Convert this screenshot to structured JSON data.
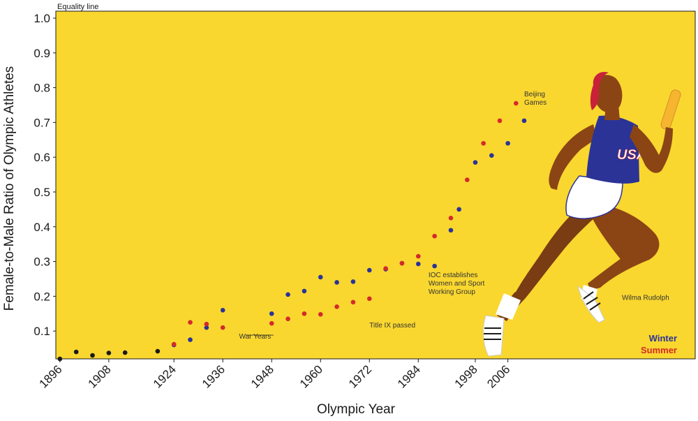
{
  "chart_data": {
    "type": "scatter",
    "title": "",
    "xlabel": "Olympic Year",
    "ylabel": "Female-to-Male Ratio of Olympic Athletes",
    "xlim": [
      1895,
      2052
    ],
    "ylim": [
      0.02,
      1.02
    ],
    "x_ticks": [
      "1896",
      "1908",
      "1924",
      "1936",
      "1948",
      "1960",
      "1972",
      "1984",
      "1998",
      "2006"
    ],
    "y_ticks": [
      "0.1",
      "0.2",
      "0.3",
      "0.4",
      "0.5",
      "0.6",
      "0.7",
      "0.8",
      "0.9",
      "1.0"
    ],
    "reference_line": {
      "label": "Equality line",
      "y": 1.0
    },
    "colors": {
      "background": "#f9d72f",
      "winter": "#2b3397",
      "summer": "#d42a2a",
      "early": "#1a1a1a"
    },
    "series": [
      {
        "name": "",
        "color": "#1a1a1a",
        "x": [
          1896,
          1900,
          1904,
          1908,
          1912,
          1920
        ],
        "y": [
          0.02,
          0.04,
          0.03,
          0.037,
          0.038,
          0.042
        ]
      },
      {
        "name": "Winter",
        "color": "#2b3397",
        "x": [
          1924,
          1928,
          1932,
          1936,
          1948,
          1952,
          1956,
          1960,
          1964,
          1968,
          1972,
          1976,
          1980,
          1984,
          1988,
          1992,
          1994,
          1998,
          2002,
          2006,
          2010
        ],
        "y": [
          0.06,
          0.075,
          0.11,
          0.16,
          0.15,
          0.205,
          0.215,
          0.255,
          0.24,
          0.242,
          0.275,
          0.278,
          0.295,
          0.293,
          0.287,
          0.39,
          0.45,
          0.585,
          0.605,
          0.64,
          0.705
        ]
      },
      {
        "name": "Summer",
        "color": "#d42a2a",
        "x": [
          1924,
          1928,
          1932,
          1936,
          1948,
          1952,
          1956,
          1960,
          1964,
          1968,
          1972,
          1976,
          1980,
          1984,
          1988,
          1992,
          1996,
          2000,
          2004,
          2008
        ],
        "y": [
          0.062,
          0.125,
          0.12,
          0.11,
          0.122,
          0.135,
          0.15,
          0.148,
          0.17,
          0.183,
          0.193,
          0.28,
          0.295,
          0.315,
          0.373,
          0.425,
          0.535,
          0.64,
          0.705,
          0.755
        ]
      }
    ],
    "annotations": [
      {
        "id": "war",
        "text": [
          "War Years"
        ],
        "x": 1940,
        "y": 0.078
      },
      {
        "id": "titleix",
        "text": [
          "Title IX passed"
        ],
        "x": 1972,
        "y": 0.11
      },
      {
        "id": "ioc",
        "text": [
          "IOC establishes",
          "Women and Sport",
          "Working Group"
        ],
        "x": 1986.5,
        "y": 0.255
      },
      {
        "id": "beijing",
        "text": [
          "Beijing",
          "Games"
        ],
        "x": 2010,
        "y": 0.775
      },
      {
        "id": "wilma",
        "text": [
          "Wilma Rudolph"
        ],
        "x": 2034,
        "y": 0.19
      }
    ],
    "legend": {
      "position": "bottom-right",
      "entries": [
        {
          "name": "Winter",
          "color": "#2b3397"
        },
        {
          "name": "Summer",
          "color": "#d42a2a"
        }
      ]
    }
  }
}
